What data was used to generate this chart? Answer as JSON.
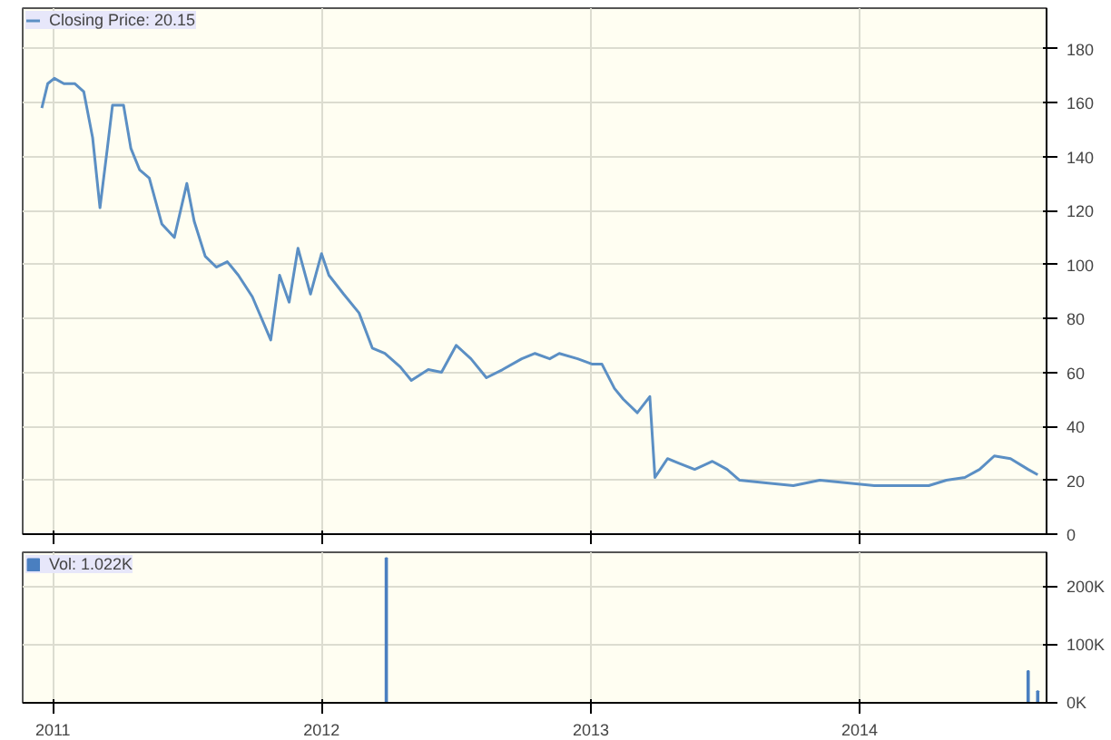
{
  "chart_data": [
    {
      "type": "line",
      "x": [
        "2010-12-17",
        "2010-12-25",
        "2011-01-03",
        "2011-01-16",
        "2011-01-31",
        "2011-02-12",
        "2011-02-24",
        "2011-03-06",
        "2011-03-16",
        "2011-03-23",
        "2011-04-07",
        "2011-04-17",
        "2011-04-29",
        "2011-05-12",
        "2011-05-29",
        "2011-06-15",
        "2011-07-02",
        "2011-07-12",
        "2011-07-27",
        "2011-08-11",
        "2011-08-26",
        "2011-09-10",
        "2011-09-29",
        "2011-10-24",
        "2011-11-05",
        "2011-11-18",
        "2011-11-30",
        "2011-12-17",
        "2012-01-01",
        "2012-01-11",
        "2012-01-31",
        "2012-02-21",
        "2012-03-10",
        "2012-03-27",
        "2012-04-17",
        "2012-05-02",
        "2012-05-25",
        "2012-06-12",
        "2012-07-02",
        "2012-07-22",
        "2012-08-12",
        "2012-09-03",
        "2012-09-29",
        "2012-10-17",
        "2012-11-06",
        "2012-11-19",
        "2012-12-14",
        "2013-01-03",
        "2013-01-16",
        "2013-02-02",
        "2013-02-14",
        "2013-03-05",
        "2013-03-22",
        "2013-03-29",
        "2013-04-15",
        "2013-05-03",
        "2013-05-22",
        "2013-06-15",
        "2013-07-05",
        "2013-07-22",
        "2013-08-27",
        "2013-10-03",
        "2013-11-08",
        "2013-12-15",
        "2014-01-21",
        "2014-02-27",
        "2014-04-05",
        "2014-04-29",
        "2014-05-24",
        "2014-06-13",
        "2014-07-03",
        "2014-07-25",
        "2014-08-18",
        "2014-08-31"
      ],
      "series": [
        {
          "name": "Closing Price: 20.15",
          "color": "#5b8fc4",
          "values": [
            158,
            167,
            169,
            167,
            167,
            164,
            147,
            121,
            143,
            159,
            159,
            143,
            135,
            132,
            115,
            110,
            130,
            116,
            103,
            99,
            101,
            96,
            88,
            72,
            96,
            86,
            106,
            89,
            104,
            96,
            89,
            82,
            69,
            67,
            62,
            57,
            61,
            60,
            70,
            65,
            58,
            61,
            65,
            67,
            65,
            67,
            65,
            63,
            63,
            54,
            50,
            45,
            51,
            21,
            28,
            26,
            24,
            27,
            24,
            20,
            19,
            18,
            20,
            19,
            18,
            18,
            18,
            20,
            21,
            24,
            29,
            28,
            24,
            22
          ]
        }
      ],
      "xlim": [
        "2010-11-21",
        "2014-09-12"
      ],
      "xticks": [
        "2011",
        "2012",
        "2013",
        "2014"
      ],
      "ylim": [
        0,
        195
      ],
      "yticks": [
        0,
        20,
        40,
        60,
        80,
        100,
        120,
        140,
        160,
        180
      ],
      "grid": true,
      "legend": "top left",
      "tick_labels": "y",
      "line_style": "solid",
      "marker": "none"
    },
    {
      "type": "bar",
      "x": [
        "2012-03-29",
        "2014-08-18",
        "2014-08-31"
      ],
      "series": [
        {
          "name": "Vol: 1.022K",
          "color": "#4a7fc0",
          "values": [
            250,
            55,
            20
          ]
        }
      ],
      "xlim": [
        "2010-11-21",
        "2014-09-12"
      ],
      "xticks": [
        "2011",
        "2012",
        "2013",
        "2014"
      ],
      "ylim": [
        0,
        260
      ],
      "yticks": [
        {
          "value": 0,
          "label": "0K"
        },
        {
          "value": 100,
          "label": "100K"
        },
        {
          "value": 200,
          "label": "200K"
        }
      ],
      "grid": true,
      "legend": "top left"
    }
  ]
}
